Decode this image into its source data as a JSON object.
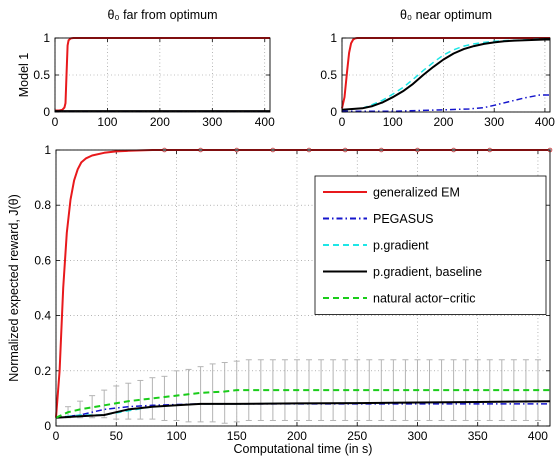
{
  "chart_data": [
    {
      "id": "top_left",
      "type": "line",
      "title": "θ₀ far from optimum",
      "ylabel": "Model 1",
      "xlabel": "",
      "xlim": [
        0,
        410
      ],
      "ylim": [
        0,
        1
      ],
      "xticks": [
        "0",
        "100",
        "200",
        "300",
        "400"
      ],
      "yticks": [
        "0",
        "0.5",
        "1"
      ],
      "grid": "dotted",
      "series": [
        {
          "name": "generalized EM",
          "color": "#e8191c",
          "dash": "solid",
          "width": 2,
          "x": [
            0,
            8,
            14,
            18,
            20,
            22,
            24,
            26,
            30,
            35,
            45,
            60,
            100,
            200,
            300,
            400,
            410
          ],
          "y": [
            0.02,
            0.02,
            0.03,
            0.06,
            0.12,
            0.5,
            0.9,
            0.97,
            0.995,
            1,
            1,
            1,
            1,
            1,
            1,
            1,
            1
          ]
        },
        {
          "name": "PEGASUS",
          "color": "#1515cc",
          "dash": "dashdot",
          "width": 1.5,
          "x": [
            0,
            100,
            200,
            300,
            410
          ],
          "y": [
            0.01,
            0.01,
            0.01,
            0.01,
            0.01
          ]
        },
        {
          "name": "p.gradient, baseline",
          "color": "#000000",
          "dash": "solid",
          "width": 1.5,
          "x": [
            0,
            100,
            200,
            300,
            410
          ],
          "y": [
            0.015,
            0.015,
            0.015,
            0.015,
            0.015
          ]
        }
      ]
    },
    {
      "id": "top_right",
      "type": "line",
      "title": "θ₀ near optimum",
      "ylabel": "",
      "xlabel": "",
      "xlim": [
        0,
        410
      ],
      "ylim": [
        0,
        1
      ],
      "xticks": [
        "0",
        "100",
        "200",
        "300",
        "400"
      ],
      "yticks": [
        "0",
        "0.5",
        "1"
      ],
      "grid": "dotted",
      "series": [
        {
          "name": "generalized EM",
          "color": "#e8191c",
          "dash": "solid",
          "width": 2,
          "x": [
            0,
            5,
            10,
            14,
            18,
            22,
            26,
            30,
            40,
            60,
            100,
            200,
            300,
            400,
            410
          ],
          "y": [
            0.05,
            0.2,
            0.55,
            0.8,
            0.93,
            0.98,
            0.995,
            1,
            1,
            1,
            1,
            1,
            1,
            1,
            1
          ]
        },
        {
          "name": "p.gradient",
          "color": "#1ee6e6",
          "dash": "dashed",
          "width": 1.5,
          "x": [
            0,
            40,
            60,
            80,
            100,
            120,
            140,
            160,
            180,
            200,
            220,
            240,
            260,
            280,
            300,
            320,
            340,
            360,
            380,
            400,
            410
          ],
          "y": [
            0.03,
            0.05,
            0.1,
            0.16,
            0.24,
            0.33,
            0.44,
            0.56,
            0.67,
            0.77,
            0.84,
            0.89,
            0.92,
            0.94,
            0.955,
            0.965,
            0.97,
            0.975,
            0.98,
            0.985,
            0.985
          ]
        },
        {
          "name": "p.gradient, baseline",
          "color": "#000000",
          "dash": "solid",
          "width": 2,
          "x": [
            0,
            20,
            40,
            60,
            80,
            100,
            120,
            140,
            160,
            180,
            200,
            220,
            240,
            260,
            280,
            300,
            320,
            340,
            360,
            380,
            400,
            410
          ],
          "y": [
            0.03,
            0.04,
            0.05,
            0.08,
            0.13,
            0.2,
            0.28,
            0.38,
            0.5,
            0.61,
            0.71,
            0.79,
            0.85,
            0.89,
            0.92,
            0.94,
            0.955,
            0.965,
            0.97,
            0.975,
            0.98,
            0.98
          ]
        },
        {
          "name": "PEGASUS",
          "color": "#1515cc",
          "dash": "dashdot",
          "width": 1.5,
          "x": [
            0,
            100,
            150,
            200,
            250,
            280,
            300,
            330,
            360,
            390,
            410
          ],
          "y": [
            0.01,
            0.01,
            0.02,
            0.03,
            0.04,
            0.06,
            0.09,
            0.14,
            0.19,
            0.23,
            0.23
          ]
        }
      ]
    },
    {
      "id": "main",
      "type": "line",
      "title": "",
      "ylabel": "Normalized expected reward, J(θ)",
      "xlabel": "Computational time (in s)",
      "xlim": [
        0,
        410
      ],
      "ylim": [
        0,
        1
      ],
      "xticks": [
        "0",
        "50",
        "100",
        "150",
        "200",
        "250",
        "300",
        "350",
        "400"
      ],
      "yticks": [
        "0",
        "0.2",
        "0.4",
        "0.6",
        "0.8",
        "1"
      ],
      "grid": "dotted",
      "legend": "top-right",
      "series": [
        {
          "name": "generalized EM",
          "color": "#e8191c",
          "dash": "solid",
          "width": 2,
          "x": [
            0,
            3,
            6,
            9,
            12,
            15,
            18,
            21,
            25,
            30,
            40,
            50,
            60,
            80,
            100,
            150,
            200,
            300,
            410
          ],
          "y": [
            0.03,
            0.2,
            0.5,
            0.7,
            0.82,
            0.89,
            0.93,
            0.955,
            0.97,
            0.98,
            0.99,
            0.995,
            0.997,
            1,
            1,
            1,
            1,
            1,
            1
          ]
        },
        {
          "name": "PEGASUS",
          "color": "#1515cc",
          "dash": "dashdot",
          "width": 1.5,
          "x": [
            0,
            20,
            40,
            60,
            80,
            100,
            120,
            150,
            200,
            250,
            300,
            350,
            410
          ],
          "y": [
            0.03,
            0.04,
            0.06,
            0.07,
            0.075,
            0.078,
            0.08,
            0.08,
            0.08,
            0.08,
            0.08,
            0.08,
            0.08
          ]
        },
        {
          "name": "p.gradient",
          "color": "#1ee6e6",
          "dash": "dashed",
          "width": 1.5,
          "x": [
            0,
            20,
            40,
            60,
            80,
            100,
            120,
            150,
            200,
            250,
            300,
            350,
            410
          ],
          "y": [
            0.03,
            0.04,
            0.04,
            0.055,
            0.07,
            0.075,
            0.08,
            0.08,
            0.082,
            0.083,
            0.085,
            0.087,
            0.09
          ]
        },
        {
          "name": "p.gradient, baseline",
          "color": "#000000",
          "dash": "solid",
          "width": 2,
          "x": [
            0,
            20,
            40,
            50,
            60,
            70,
            80,
            100,
            120,
            150,
            200,
            250,
            300,
            350,
            410
          ],
          "y": [
            0.03,
            0.035,
            0.04,
            0.05,
            0.06,
            0.065,
            0.07,
            0.075,
            0.08,
            0.08,
            0.082,
            0.083,
            0.085,
            0.087,
            0.09
          ]
        },
        {
          "name": "natural actor−critic",
          "color": "#19cc19",
          "dash": "dashed",
          "width": 2,
          "x": [
            0,
            10,
            20,
            40,
            60,
            80,
            100,
            120,
            140,
            150,
            160,
            200,
            250,
            300,
            350,
            410
          ],
          "y": [
            0.03,
            0.05,
            0.06,
            0.075,
            0.09,
            0.1,
            0.11,
            0.12,
            0.125,
            0.13,
            0.13,
            0.13,
            0.13,
            0.13,
            0.13,
            0.13
          ]
        }
      ],
      "markers": {
        "series": "generalized EM",
        "x": [
          90,
          120,
          150,
          180,
          210,
          240,
          270,
          300,
          330,
          360,
          410
        ],
        "y": [
          1,
          1,
          1,
          1,
          1,
          1,
          1,
          1,
          1,
          1,
          1
        ]
      },
      "errorbars": {
        "color": "#b4b4b4",
        "x": [
          10,
          20,
          30,
          40,
          50,
          60,
          70,
          80,
          90,
          100,
          110,
          120,
          130,
          140,
          150,
          160,
          170,
          180,
          190,
          200,
          210,
          220,
          230,
          240,
          250,
          260,
          270,
          280,
          290,
          300,
          310,
          320,
          330,
          340,
          350,
          360,
          370,
          380,
          390,
          400
        ],
        "center": [
          0.05,
          0.06,
          0.07,
          0.08,
          0.085,
          0.09,
          0.095,
          0.1,
          0.1,
          0.11,
          0.11,
          0.115,
          0.12,
          0.12,
          0.125,
          0.13,
          0.13,
          0.13,
          0.13,
          0.13,
          0.13,
          0.13,
          0.13,
          0.13,
          0.13,
          0.13,
          0.13,
          0.13,
          0.13,
          0.13,
          0.13,
          0.13,
          0.13,
          0.13,
          0.13,
          0.13,
          0.13,
          0.13,
          0.13,
          0.13
        ],
        "half": [
          0.02,
          0.03,
          0.04,
          0.05,
          0.06,
          0.065,
          0.07,
          0.075,
          0.08,
          0.09,
          0.095,
          0.1,
          0.105,
          0.11,
          0.11,
          0.11,
          0.11,
          0.11,
          0.11,
          0.11,
          0.11,
          0.11,
          0.11,
          0.11,
          0.11,
          0.11,
          0.11,
          0.11,
          0.11,
          0.11,
          0.11,
          0.11,
          0.11,
          0.11,
          0.11,
          0.11,
          0.11,
          0.11,
          0.11,
          0.11
        ]
      }
    }
  ]
}
